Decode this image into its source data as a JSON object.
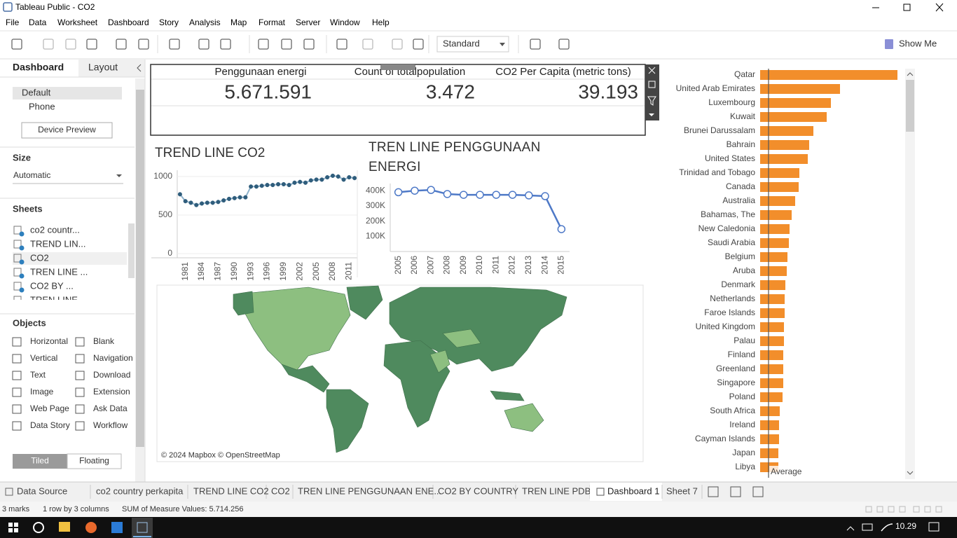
{
  "window": {
    "title": "Tableau Public - CO2"
  },
  "menu": [
    "File",
    "Data",
    "Worksheet",
    "Dashboard",
    "Story",
    "Analysis",
    "Map",
    "Format",
    "Server",
    "Window",
    "Help"
  ],
  "toolbar": {
    "fit": "Standard",
    "show_me": "Show Me"
  },
  "left_panel": {
    "tabs": [
      "Dashboard",
      "Layout"
    ],
    "devices": [
      "Default",
      "Phone"
    ],
    "device_preview": "Device Preview",
    "size_heading": "Size",
    "size_value": "Automatic",
    "sheets_heading": "Sheets",
    "sheets": [
      "co2 countr...",
      "TREND LIN...",
      "CO2",
      "TREN LINE ...",
      "CO2 BY ...",
      "TREN LINE"
    ],
    "objects_heading": "Objects",
    "objects": [
      "Horizontal",
      "Blank",
      "Vertical",
      "Navigation",
      "Text",
      "Download",
      "Image",
      "Extension",
      "Web Page",
      "Ask Data",
      "Data Story",
      "Workflow"
    ],
    "layout_modes": [
      "Tiled",
      "Floating"
    ]
  },
  "kpi": {
    "headers": [
      "Penggunaan energi",
      "Count of totalpopulation",
      "CO2 Per Capita (metric tons)"
    ],
    "values": [
      "5.671.591",
      "3.472",
      "39.193"
    ]
  },
  "map": {
    "attribution": "© 2024 Mapbox © OpenStreetMap"
  },
  "chart_data": [
    {
      "type": "line",
      "title": "TREND LINE CO2",
      "x": [
        1980,
        1981,
        1982,
        1983,
        1984,
        1985,
        1986,
        1987,
        1988,
        1989,
        1990,
        1991,
        1992,
        1993,
        1994,
        1995,
        1996,
        1997,
        1998,
        1999,
        2000,
        2001,
        2002,
        2003,
        2004,
        2005,
        2006,
        2007,
        2008,
        2009,
        2010,
        2011,
        2012
      ],
      "values": [
        770,
        680,
        660,
        630,
        650,
        660,
        660,
        670,
        690,
        710,
        720,
        730,
        730,
        870,
        870,
        880,
        890,
        890,
        900,
        900,
        890,
        920,
        930,
        920,
        950,
        960,
        960,
        990,
        1010,
        1000,
        960,
        990,
        980
      ],
      "color": "#2f5d7c",
      "xlim": [
        1979.5,
        2012.5
      ],
      "xticks": [
        1981,
        1984,
        1987,
        1990,
        1993,
        1996,
        1999,
        2002,
        2005,
        2008,
        2011
      ],
      "ylim": [
        0,
        1050
      ],
      "yticks": [
        0,
        500,
        1000
      ],
      "grid": true
    },
    {
      "type": "line",
      "title": "TREN LINE PENGGUNAAN ENERGI",
      "x": [
        2005,
        2006,
        2007,
        2008,
        2009,
        2010,
        2011,
        2012,
        2013,
        2014,
        2015
      ],
      "values": [
        390000,
        400000,
        405000,
        378000,
        373000,
        373000,
        373000,
        373000,
        369000,
        364000,
        147000
      ],
      "color": "#4e79c7",
      "xlim": [
        2004.5,
        2015.5
      ],
      "ylim": [
        0,
        430000
      ],
      "yticks": [
        {
          "value": 100000,
          "label": "100K"
        },
        {
          "value": 200000,
          "label": "200K"
        },
        {
          "value": 300000,
          "label": "300K"
        },
        {
          "value": 400000,
          "label": "400K"
        }
      ],
      "grid": false
    },
    {
      "type": "hbar",
      "categories": [
        "Qatar",
        "United Arab Emirates",
        "Luxembourg",
        "Kuwait",
        "Brunei Darussalam",
        "Bahrain",
        "United States",
        "Trinidad and Tobago",
        "Canada",
        "Australia",
        "Bahamas, The",
        "New Caledonia",
        "Saudi Arabia",
        "Belgium",
        "Aruba",
        "Denmark",
        "Netherlands",
        "Faroe Islands",
        "United Kingdom",
        "Palau",
        "Finland",
        "Greenland",
        "Singapore",
        "Poland",
        "South Africa",
        "Ireland",
        "Cayman Islands",
        "Japan",
        "Libya"
      ],
      "values": [
        39.2,
        22.8,
        20.2,
        19,
        15.2,
        14,
        13.6,
        11.2,
        11,
        10,
        9,
        8.4,
        8.2,
        7.8,
        7.6,
        7.2,
        7,
        7,
        6.8,
        6.8,
        6.6,
        6.6,
        6.6,
        6.4,
        5.6,
        5.4,
        5.4,
        5.2,
        5.2
      ],
      "color": "#f28e2b",
      "xlim": [
        0,
        41
      ],
      "reference_line": {
        "label": "Average",
        "value": 2.4
      }
    }
  ],
  "sheet_tabs": [
    "Data Source",
    "co2 country perkapita",
    "TREND LINE CO2",
    "CO2",
    "TREN LINE PENGGUNAAN ENE...",
    "CO2 BY COUNTRY",
    "TREN LINE PDB",
    "Dashboard 1",
    "Sheet 7"
  ],
  "status_bar": [
    "3 marks",
    "1 row by 3 columns",
    "SUM of Measure Values: 5.714.256"
  ],
  "taskbar": {
    "clock": "10.29"
  }
}
